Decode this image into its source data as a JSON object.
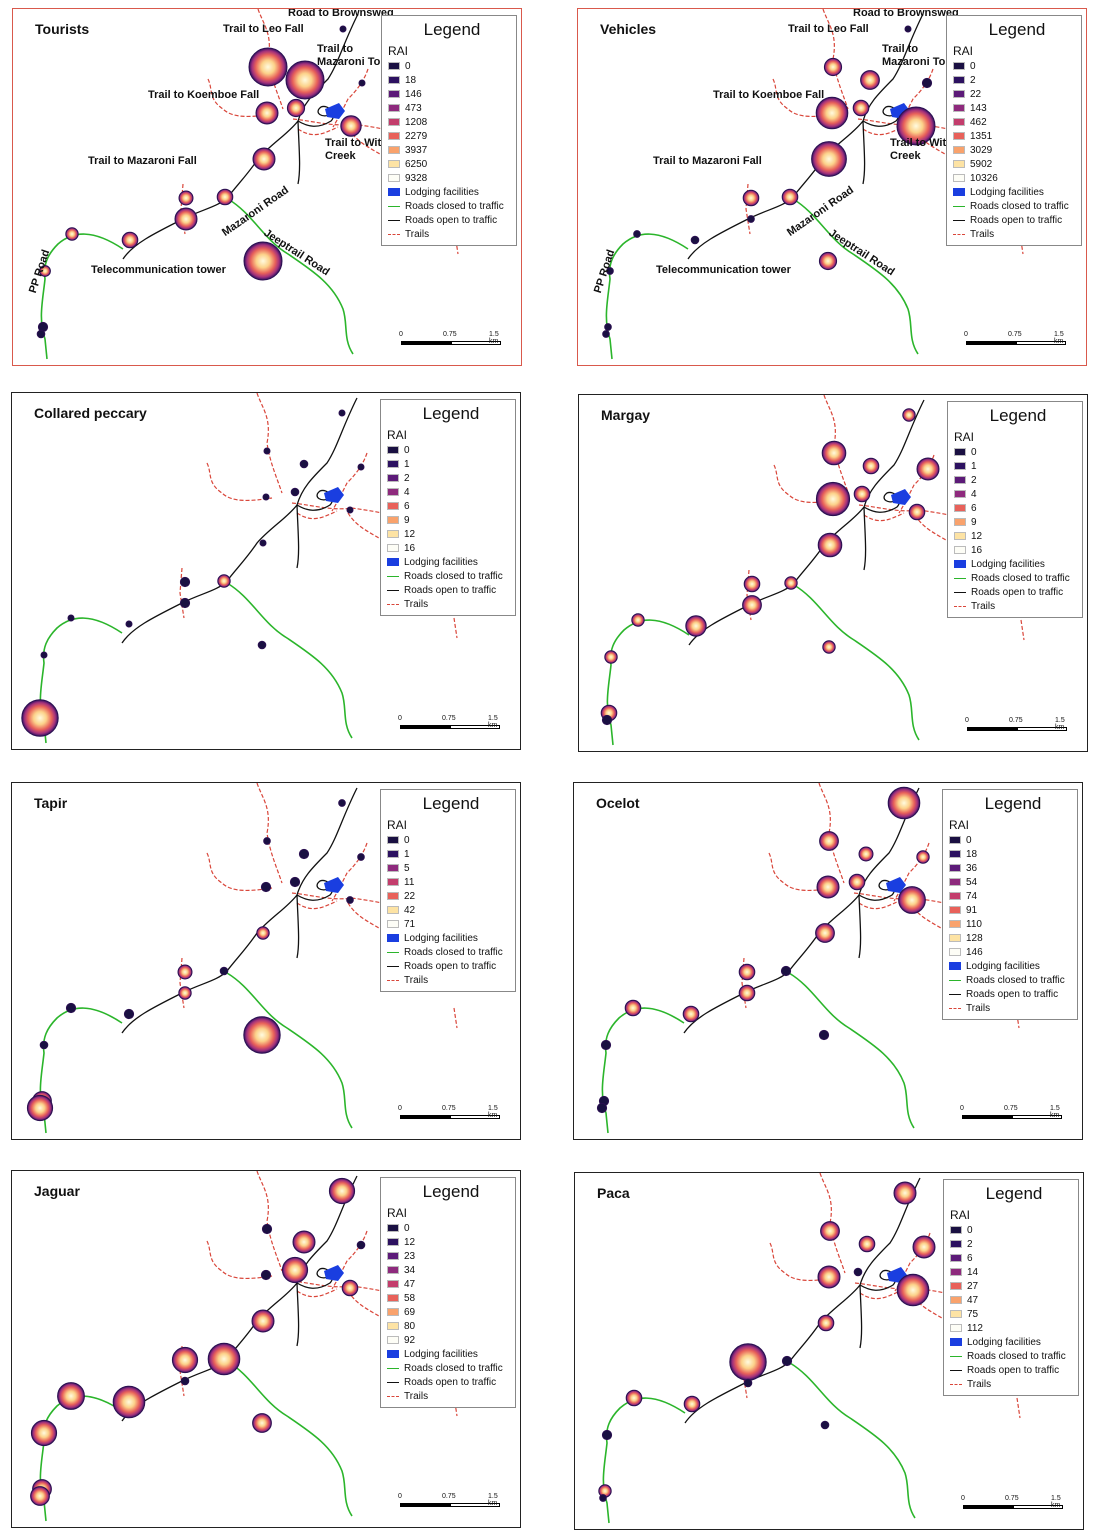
{
  "legend_title": "Legend",
  "rai_label": "RAI",
  "layer_labels": {
    "lodging": "Lodging facilities",
    "closed": "Roads closed to traffic",
    "open": "Roads open to traffic",
    "trails": "Trails"
  },
  "scale": {
    "t0": "0",
    "t1": "0.75",
    "t2": "1.5 km"
  },
  "colors": {
    "road_open": "#111111",
    "road_closed": "#2bb52b",
    "trail": "#d9463a",
    "lodging": "#1a3ee0",
    "border_highlight": "#d9594c"
  },
  "place_labels": {
    "brownsweg": "Road to Brownsweg",
    "leo": "Trail to Leo Fall",
    "mazaroni_top": "Trail to Mazaroni Top",
    "koemboe": "Trail to Koemboe Fall",
    "witi": "Trail to Witi Creek",
    "mazaroni_fall": "Trail to Mazaroni Fall",
    "mazaroni_road": "Mazaroni Road",
    "jeeptrail": "Jeeptrail Road",
    "pp": "PP Road",
    "tower": "Telecommunication tower"
  },
  "panels": [
    {
      "title": "Tourists",
      "classes": [
        "0",
        "18",
        "146",
        "473",
        "1208",
        "2279",
        "3937",
        "6250",
        "9328"
      ],
      "site_levels": [
        0,
        1,
        1,
        0,
        0.35,
        0.5,
        0.45,
        0.5,
        0.25,
        0.5,
        0.3,
        0.3,
        0.2,
        1,
        0.15,
        0.1,
        0.05
      ]
    },
    {
      "title": "Vehicles",
      "classes": [
        "0",
        "2",
        "22",
        "143",
        "462",
        "1351",
        "3029",
        "5902",
        "10326"
      ],
      "site_levels": [
        0,
        0.35,
        0.4,
        0.1,
        0.3,
        0.8,
        1,
        0.9,
        0.3,
        0.02,
        0.3,
        0.05,
        0.02,
        0.35,
        0.02,
        0.02,
        0.02
      ]
    },
    {
      "title": "Collared peccary",
      "classes": [
        "0",
        "1",
        "2",
        "4",
        "6",
        "9",
        "12",
        "16"
      ],
      "site_levels": [
        0,
        0,
        0.05,
        0,
        0.05,
        0,
        0,
        0,
        0.1,
        0.1,
        0.2,
        0,
        0,
        0.05,
        0,
        0.4,
        0.95
      ]
    },
    {
      "title": "Margay",
      "classes": [
        "0",
        "1",
        "2",
        "4",
        "6",
        "9",
        "12",
        "16"
      ],
      "site_levels": [
        0.2,
        0.55,
        0.3,
        0.5,
        0.3,
        0.85,
        0.3,
        0.55,
        0.3,
        0.4,
        0.2,
        0.45,
        0.2,
        0.2,
        0.2,
        0.3,
        0.1
      ]
    },
    {
      "title": "Tapir",
      "classes": [
        "0",
        "1",
        "5",
        "11",
        "22",
        "42",
        "71"
      ],
      "site_levels": [
        0.02,
        0.02,
        0.1,
        0.02,
        0.1,
        0.1,
        0.02,
        0.2,
        0.25,
        0.2,
        0.05,
        0.1,
        0.1,
        0.95,
        0.05,
        0.4,
        0.6
      ]
    },
    {
      "title": "Ocelot",
      "classes": [
        "0",
        "18",
        "36",
        "54",
        "74",
        "91",
        "110",
        "128",
        "146"
      ],
      "site_levels": [
        0.8,
        0.4,
        0.25,
        0.2,
        0.3,
        0.5,
        0.65,
        0.4,
        0.3,
        0.3,
        0.1,
        0.3,
        0.3,
        0.1,
        0.1,
        0.1,
        0.1
      ]
    },
    {
      "title": "Jaguar",
      "classes": [
        "0",
        "12",
        "23",
        "34",
        "47",
        "58",
        "69",
        "80",
        "92"
      ],
      "site_levels": [
        0.6,
        0.1,
        0.5,
        0.05,
        0.6,
        0.1,
        0.3,
        0.5,
        0.6,
        0.05,
        0.8,
        0.8,
        0.65,
        0.4,
        0.6,
        0.4,
        0.4
      ]
    },
    {
      "title": "Paca",
      "classes": [
        "0",
        "2",
        "6",
        "14",
        "27",
        "47",
        "75",
        "112"
      ],
      "site_levels": [
        0.5,
        0.4,
        0.3,
        0.5,
        0.05,
        0.5,
        0.8,
        0.3,
        0.95,
        0.05,
        0.1,
        0.3,
        0.3,
        0.05,
        0.1,
        0.2,
        0.02
      ]
    }
  ]
}
